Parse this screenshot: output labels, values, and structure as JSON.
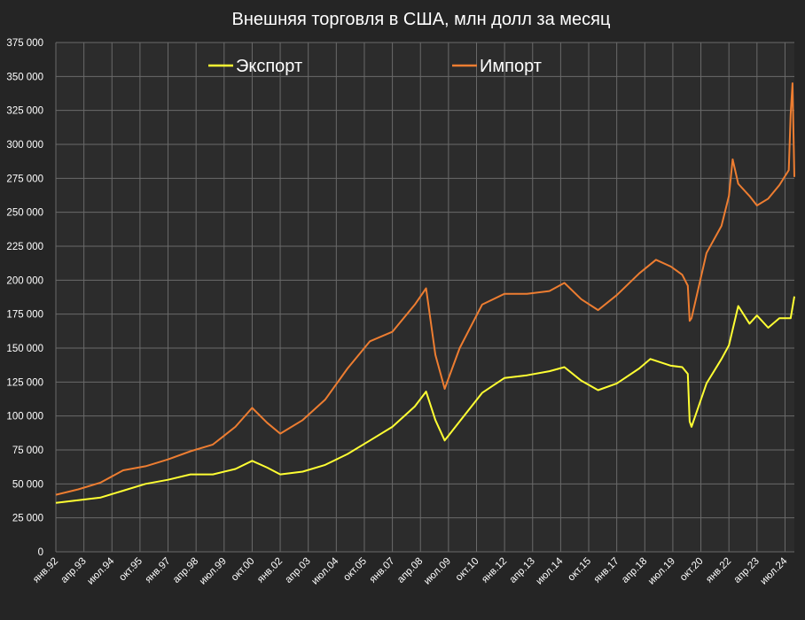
{
  "chart_data": {
    "type": "line",
    "title": "Внешняя торговля в США, млн долл за месяц",
    "xlabel": "",
    "ylabel": "",
    "ylim": [
      0,
      375000
    ],
    "yticks": [
      0,
      25000,
      50000,
      75000,
      100000,
      125000,
      150000,
      175000,
      200000,
      225000,
      250000,
      275000,
      300000,
      325000,
      350000,
      375000
    ],
    "ytick_labels": [
      "0",
      "25 000",
      "50 000",
      "75 000",
      "100 000",
      "125 000",
      "150 000",
      "175 000",
      "200 000",
      "225 000",
      "250 000",
      "275 000",
      "300 000",
      "325 000",
      "350 000",
      "375 000"
    ],
    "xlim": [
      "1992-01",
      "2024-12"
    ],
    "xtick_dates": [
      "1992-01",
      "1993-04",
      "1994-07",
      "1995-10",
      "1997-01",
      "1998-04",
      "1999-07",
      "2000-10",
      "2002-01",
      "2003-04",
      "2004-07",
      "2005-10",
      "2007-01",
      "2008-04",
      "2009-07",
      "2010-10",
      "2012-01",
      "2013-04",
      "2014-07",
      "2015-10",
      "2017-01",
      "2018-04",
      "2019-07",
      "2020-10",
      "2022-01",
      "2023-04",
      "2024-07"
    ],
    "xtick_labels": [
      "янв.92",
      "апр.93",
      "июл.94",
      "окт.95",
      "янв.97",
      "апр.98",
      "июл.99",
      "окт.00",
      "янв.02",
      "апр.03",
      "июл.04",
      "окт.05",
      "янв.07",
      "апр.08",
      "июл.09",
      "окт.10",
      "янв.12",
      "апр.13",
      "июл.14",
      "окт.15",
      "янв.17",
      "апр.18",
      "июл.19",
      "окт.20",
      "янв.22",
      "апр.23",
      "июл.24"
    ],
    "grid": true,
    "legend": "top",
    "colors": {
      "export": "#ffff33",
      "import": "#ed7d31"
    },
    "series": [
      {
        "name": "Экспорт",
        "x": [
          "1992-01",
          "1993-01",
          "1994-01",
          "1995-01",
          "1996-01",
          "1997-01",
          "1998-01",
          "1999-01",
          "2000-01",
          "2000-10",
          "2001-06",
          "2002-01",
          "2003-01",
          "2004-01",
          "2005-01",
          "2006-01",
          "2007-01",
          "2008-01",
          "2008-07",
          "2008-12",
          "2009-05",
          "2010-01",
          "2011-01",
          "2012-01",
          "2013-01",
          "2014-01",
          "2014-09",
          "2015-06",
          "2016-03",
          "2017-01",
          "2018-01",
          "2018-07",
          "2019-06",
          "2019-12",
          "2020-03",
          "2020-04",
          "2020-05",
          "2021-01",
          "2021-09",
          "2022-01",
          "2022-06",
          "2022-12",
          "2023-04",
          "2023-10",
          "2024-04",
          "2024-10",
          "2024-12"
        ],
        "y": [
          36000,
          38000,
          40000,
          45000,
          50000,
          53000,
          57000,
          57000,
          61000,
          67000,
          62000,
          57000,
          59000,
          64000,
          72000,
          82000,
          92000,
          107000,
          118000,
          97000,
          82000,
          96000,
          117000,
          128000,
          130000,
          133000,
          136000,
          126000,
          119000,
          124000,
          135000,
          142000,
          137000,
          136000,
          131000,
          96000,
          92000,
          124000,
          142000,
          152000,
          181000,
          168000,
          174000,
          165000,
          172000,
          172000,
          188000
        ]
      },
      {
        "name": "Импорт",
        "x": [
          "1992-01",
          "1993-01",
          "1994-01",
          "1995-01",
          "1996-01",
          "1997-01",
          "1998-01",
          "1999-01",
          "2000-01",
          "2000-10",
          "2001-06",
          "2002-01",
          "2003-01",
          "2004-01",
          "2005-01",
          "2006-01",
          "2007-01",
          "2008-01",
          "2008-07",
          "2008-12",
          "2009-05",
          "2010-01",
          "2011-01",
          "2012-01",
          "2013-01",
          "2014-01",
          "2014-09",
          "2015-06",
          "2016-03",
          "2017-01",
          "2018-01",
          "2018-10",
          "2019-06",
          "2019-12",
          "2020-03",
          "2020-04",
          "2020-05",
          "2021-01",
          "2021-09",
          "2022-01",
          "2022-03",
          "2022-06",
          "2022-12",
          "2023-04",
          "2023-10",
          "2024-04",
          "2024-09",
          "2024-10",
          "2024-11",
          "2024-12"
        ],
        "y": [
          42000,
          46000,
          51000,
          60000,
          63000,
          68000,
          74000,
          79000,
          92000,
          106000,
          95000,
          87000,
          97000,
          112000,
          135000,
          155000,
          162000,
          182000,
          194000,
          145000,
          120000,
          150000,
          182000,
          190000,
          190000,
          192000,
          198000,
          186000,
          178000,
          189000,
          205000,
          215000,
          210000,
          204000,
          196000,
          170000,
          172000,
          220000,
          240000,
          262000,
          289000,
          271000,
          262000,
          255000,
          260000,
          270000,
          281000,
          322000,
          345000,
          276000
        ]
      }
    ]
  }
}
